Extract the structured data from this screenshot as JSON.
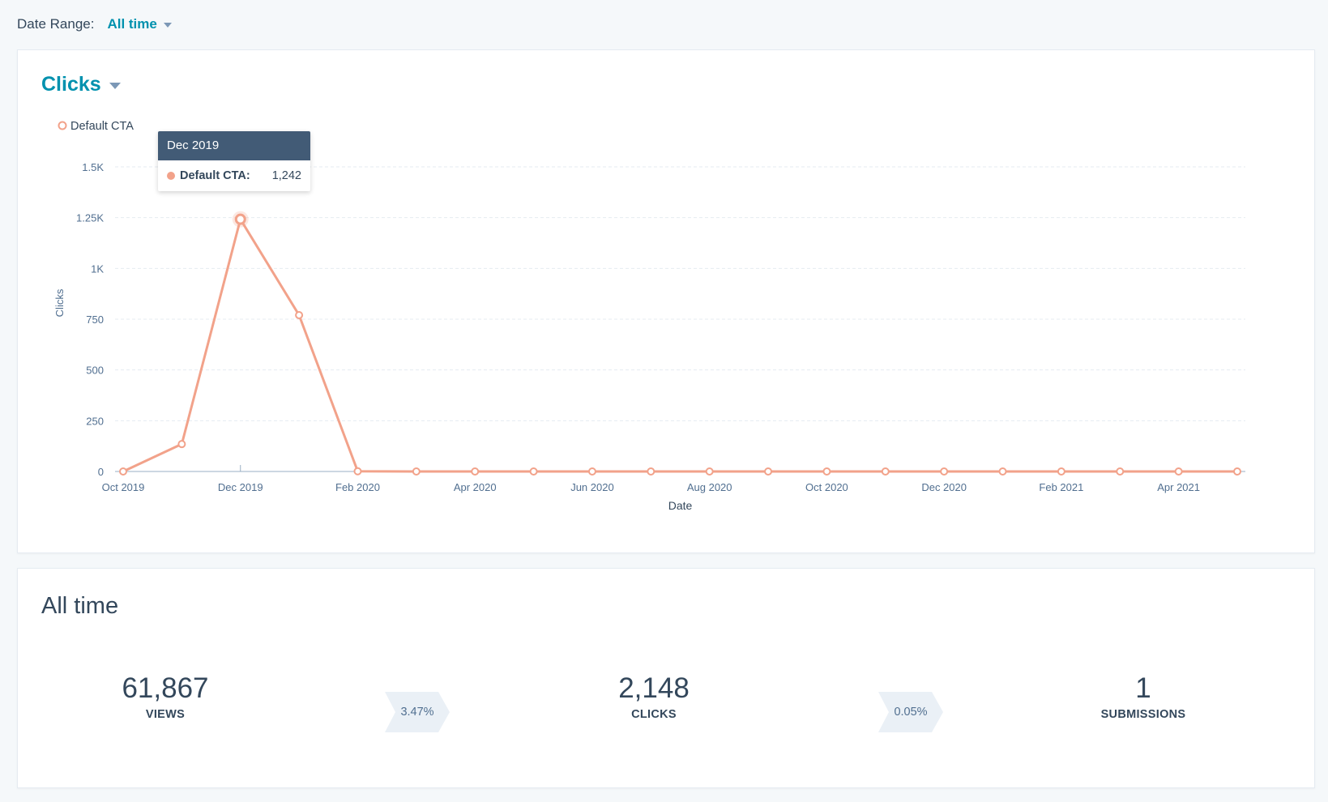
{
  "date_range": {
    "label": "Date Range:",
    "value": "All time"
  },
  "chart_card": {
    "metric": "Clicks"
  },
  "tooltip": {
    "title": "Dec 2019",
    "series": "Default CTA:",
    "value": "1,242"
  },
  "chart_data": {
    "type": "line",
    "ylabel": "Clicks",
    "xlabel": "Date",
    "ylim": [
      0,
      1500
    ],
    "yticks": [
      0,
      250,
      500,
      750,
      1000,
      1250,
      1500
    ],
    "ytick_labels": [
      "0",
      "250",
      "500",
      "750",
      "1K",
      "1.25K",
      "1.5K"
    ],
    "x": [
      "Oct 2019",
      "Nov 2019",
      "Dec 2019",
      "Jan 2020",
      "Feb 2020",
      "Mar 2020",
      "Apr 2020",
      "May 2020",
      "Jun 2020",
      "Jul 2020",
      "Aug 2020",
      "Sep 2020",
      "Oct 2020",
      "Nov 2020",
      "Dec 2020",
      "Jan 2021",
      "Feb 2021",
      "Mar 2021",
      "Apr 2021",
      "May 2021"
    ],
    "xtick_labels": [
      "Oct 2019",
      "Dec 2019",
      "Feb 2020",
      "Apr 2020",
      "Jun 2020",
      "Aug 2020",
      "Oct 2020",
      "Dec 2020",
      "Feb 2021",
      "Apr 2021"
    ],
    "series": [
      {
        "name": "Default CTA",
        "color": "#f2a28a",
        "values": [
          0,
          135,
          1242,
          770,
          1,
          0,
          0,
          0,
          0,
          0,
          0,
          0,
          0,
          0,
          0,
          0,
          0,
          0,
          0,
          0
        ]
      }
    ],
    "highlight_index": 2,
    "legend": "top-left",
    "grid": true
  },
  "summary": {
    "title": "All time",
    "views": {
      "value": "61,867",
      "label": "VIEWS"
    },
    "rate1": "3.47%",
    "clicks": {
      "value": "2,148",
      "label": "CLICKS"
    },
    "rate2": "0.05%",
    "submissions": {
      "value": "1",
      "label": "SUBMISSIONS"
    }
  }
}
